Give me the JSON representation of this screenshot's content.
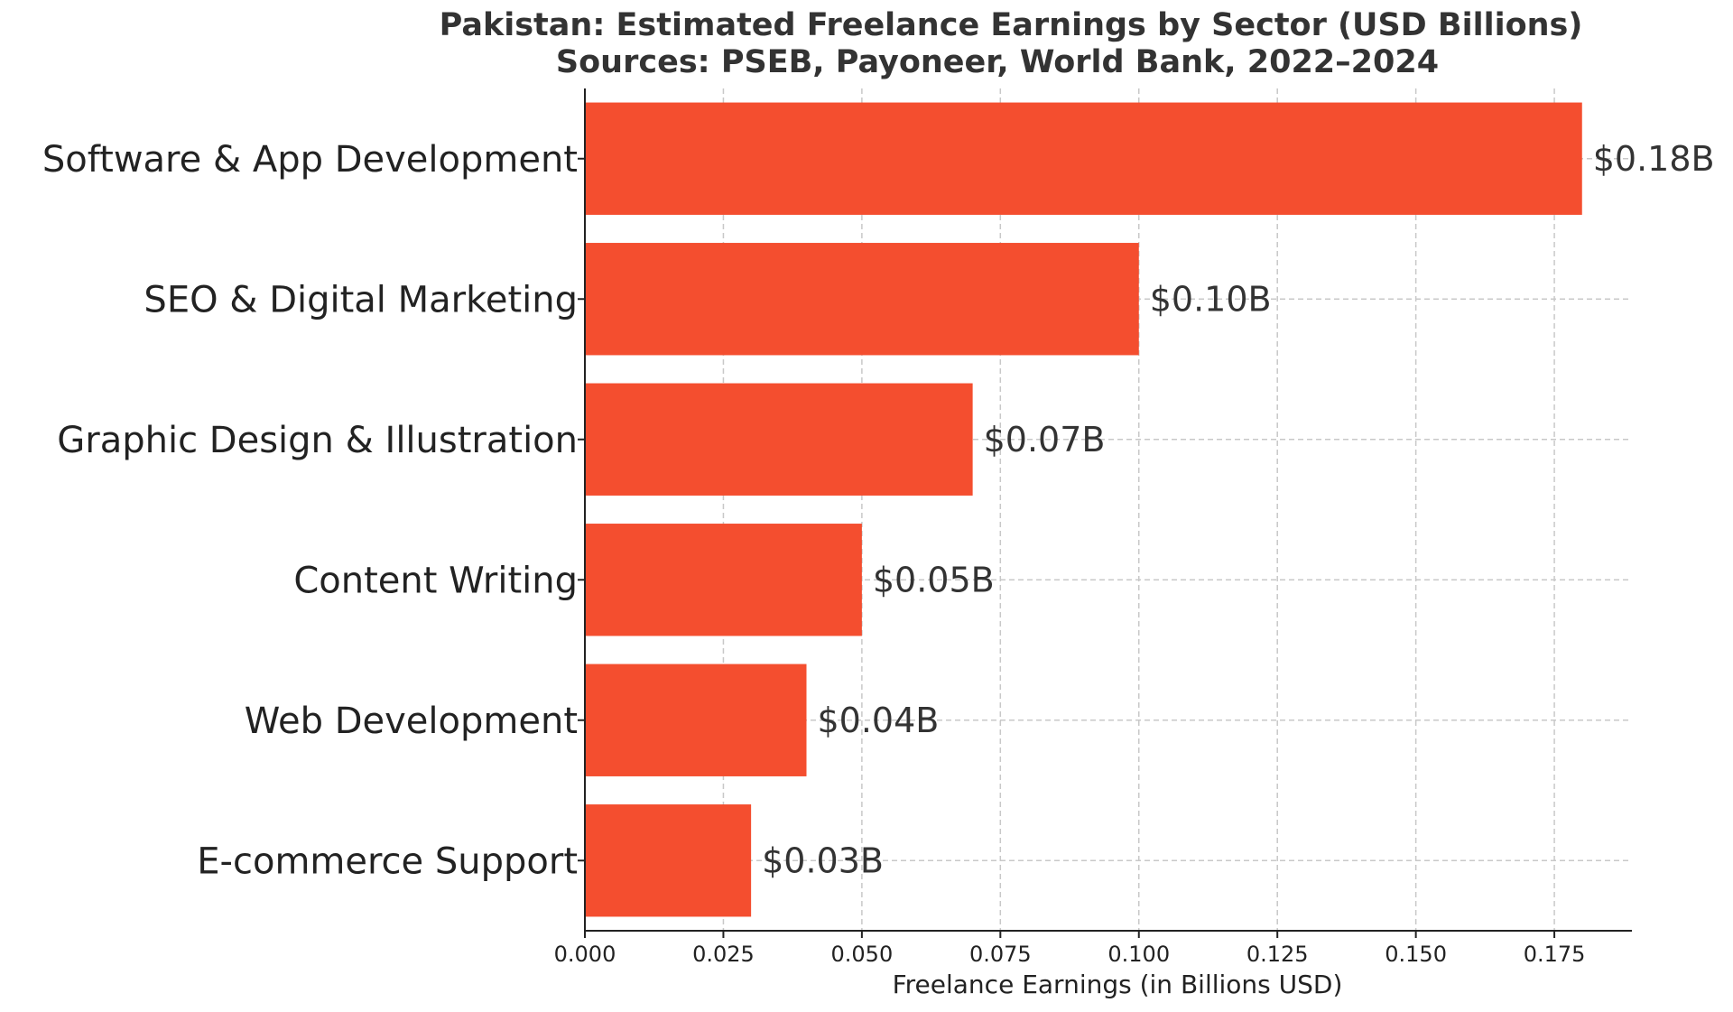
{
  "chart_data": {
    "type": "bar",
    "orientation": "horizontal",
    "title": "Pakistan: Estimated Freelance Earnings by Sector (USD Billions)",
    "subtitle": "Sources: PSEB, Payoneer, World Bank, 2022–2024",
    "xlabel": "Freelance Earnings (in Billions USD)",
    "ylabel": "",
    "categories": [
      "Software & App Development",
      "SEO & Digital Marketing",
      "Graphic Design & Illustration",
      "Content Writing",
      "Web Development",
      "E-commerce Support"
    ],
    "values": [
      0.18,
      0.1,
      0.07,
      0.05,
      0.04,
      0.03
    ],
    "data_labels": [
      "$0.18B",
      "$0.10B",
      "$0.07B",
      "$0.05B",
      "$0.04B",
      "$0.03B"
    ],
    "xlim": [
      0,
      0.189
    ],
    "xticks": [
      0.0,
      0.025,
      0.05,
      0.075,
      0.1,
      0.125,
      0.15,
      0.175
    ],
    "xtick_labels": [
      "0.000",
      "0.025",
      "0.050",
      "0.075",
      "0.100",
      "0.125",
      "0.150",
      "0.175"
    ],
    "grid": true,
    "bar_color": "#f44e2f"
  }
}
